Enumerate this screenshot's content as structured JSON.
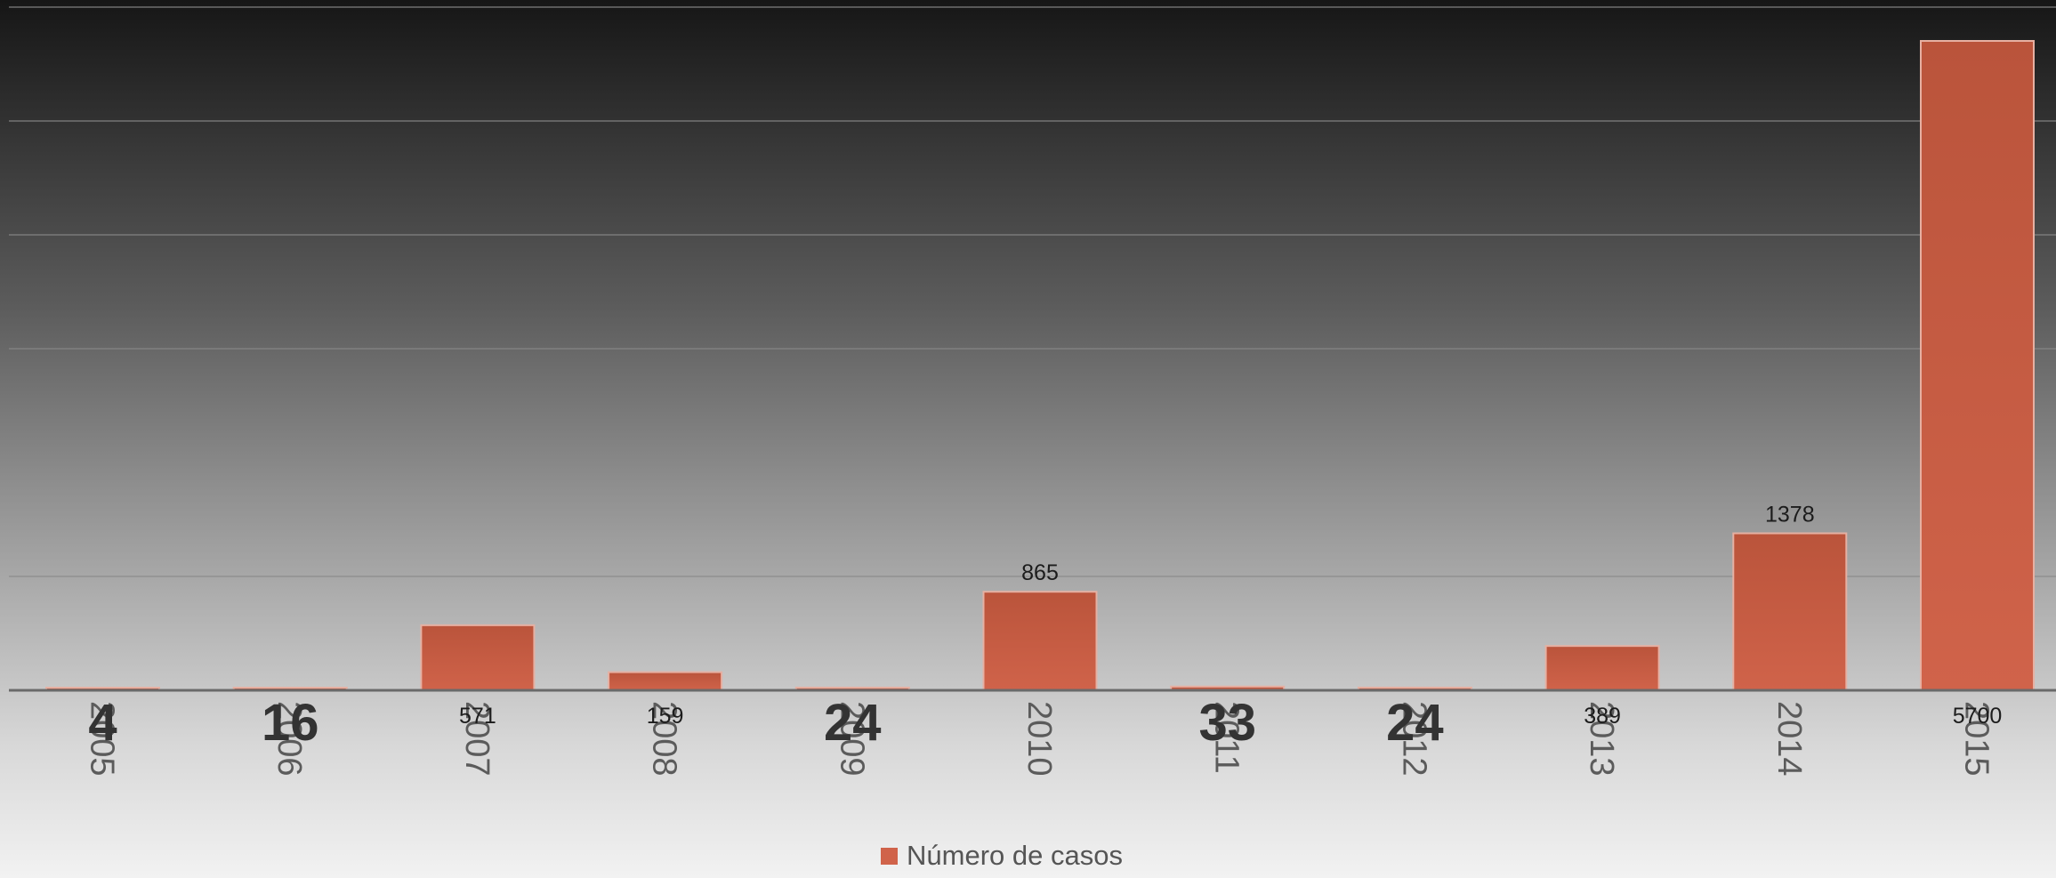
{
  "chart_data": {
    "type": "bar",
    "categories": [
      "2005",
      "2006",
      "2007",
      "2008",
      "2009",
      "2010",
      "2011",
      "2012",
      "2013",
      "2014",
      "2015"
    ],
    "series": [
      {
        "name": "Número de casos",
        "values": [
          4,
          16,
          571,
          159,
          24,
          865,
          33,
          24,
          389,
          1378,
          5700
        ],
        "data_labels": [
          "4",
          "16",
          "571",
          "159",
          "24",
          "865",
          "33",
          "24",
          "389",
          "1378",
          "5700"
        ]
      }
    ],
    "ylim": [
      0,
      6000
    ],
    "grid": true,
    "legend": "bottom",
    "colors": {
      "bar": "#d0634a",
      "bar_top": "#ba543b"
    }
  }
}
